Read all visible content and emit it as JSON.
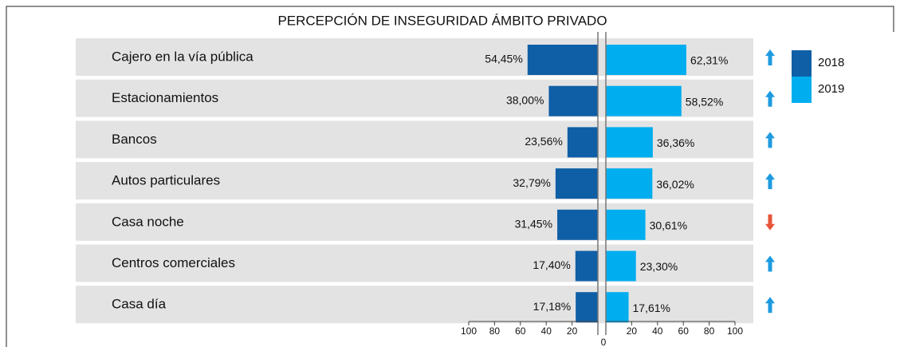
{
  "chart_data": {
    "type": "butterfly",
    "title": "PERCEPCIÓN DE INSEGURIDAD ÁMBITO PRIVADO",
    "categories": [
      "Cajero en la vía pública",
      "Estacionamientos",
      "Bancos",
      "Autos particulares",
      "Casa noche",
      "Centros comerciales",
      "Casa día"
    ],
    "series": [
      {
        "name": "2018",
        "color": "#0f5fa6",
        "values": [
          54.45,
          38.0,
          23.56,
          32.79,
          31.45,
          17.4,
          17.18
        ],
        "value_labels": [
          "54,45%",
          "38,00%",
          "23,56%",
          "32,79%",
          "31,45%",
          "17,40%",
          "17,18%"
        ]
      },
      {
        "name": "2019",
        "color": "#00aeef",
        "values": [
          62.31,
          58.52,
          36.36,
          36.02,
          30.61,
          23.3,
          17.61
        ],
        "value_labels": [
          "62,31%",
          "58,52%",
          "36,36%",
          "36,02%",
          "30,61%",
          "23,30%",
          "17,61%"
        ]
      }
    ],
    "xlim": [
      0,
      100
    ],
    "xticks": [
      0,
      20,
      40,
      60,
      80,
      100
    ],
    "trend_colors": {
      "up": "#1e9be0",
      "down": "#e8553a"
    }
  }
}
